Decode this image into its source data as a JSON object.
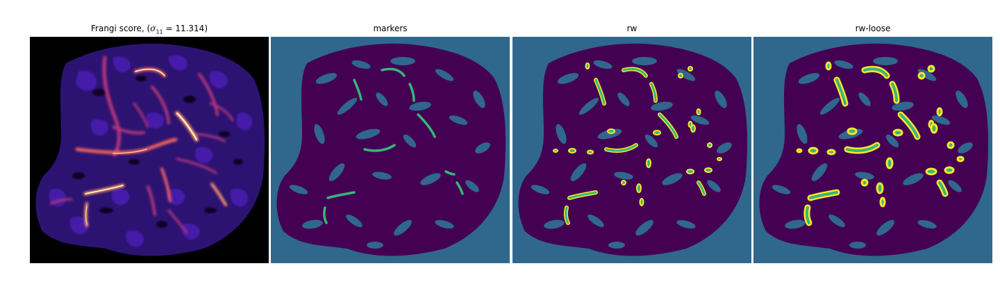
{
  "figure": {
    "panels": [
      {
        "key": "frangi",
        "title_prefix": "Frangi score, (",
        "title_symbol": "σ",
        "title_subscript": "11",
        "title_suffix": " = 11.314)",
        "colormap": "magma",
        "background_color": "#000000"
      },
      {
        "key": "markers",
        "title": "markers",
        "background_color": "#30678d",
        "foreground_color": "#440154",
        "marker_color": "#35b779"
      },
      {
        "key": "rw",
        "title": "rw",
        "background_color": "#30678d",
        "foreground_color": "#440154",
        "vessel_color": "#35b779",
        "edge_color": "#fde725"
      },
      {
        "key": "rw-loose",
        "title": "rw-loose",
        "background_color": "#30678d",
        "foreground_color": "#440154",
        "vessel_color": "#35b779",
        "edge_color": "#fde725"
      }
    ]
  }
}
